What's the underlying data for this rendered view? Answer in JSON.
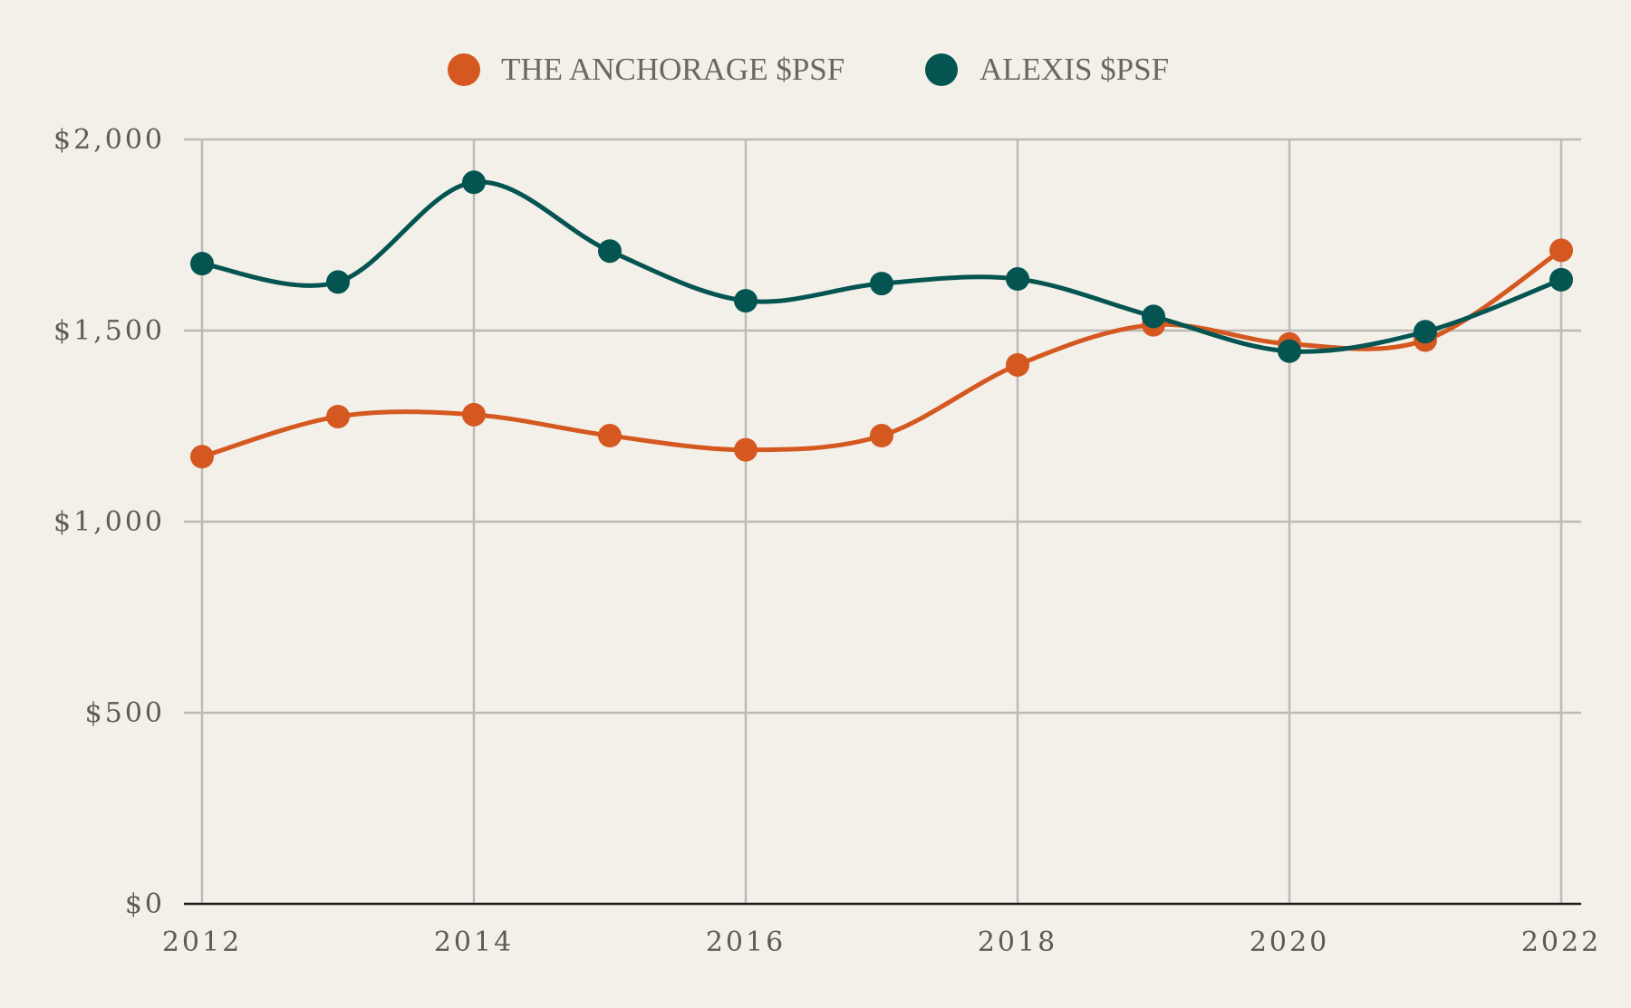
{
  "chart_data": {
    "type": "line",
    "title": "",
    "xlabel": "",
    "ylabel": "",
    "x": [
      2012,
      2013,
      2014,
      2015,
      2016,
      2017,
      2018,
      2019,
      2020,
      2021,
      2022
    ],
    "x_ticks": [
      "2012",
      "2014",
      "2016",
      "2018",
      "2020",
      "2022"
    ],
    "y_ticks": [
      "$0",
      "$500",
      "$1,000",
      "$1,500",
      "$2,000"
    ],
    "xlim": [
      2012,
      2022
    ],
    "ylim": [
      0,
      2000
    ],
    "grid": true,
    "legend_position": "top-center",
    "series": [
      {
        "name": "THE ANCHORAGE $PSF",
        "color": "#d4581f",
        "values": [
          1170,
          1275,
          1280,
          1225,
          1188,
          1225,
          1410,
          1515,
          1465,
          1475,
          1710
        ]
      },
      {
        "name": "ALEXIS $PSF",
        "color": "#045451",
        "values": [
          1675,
          1627,
          1888,
          1708,
          1578,
          1623,
          1635,
          1537,
          1446,
          1497,
          1633
        ]
      }
    ]
  }
}
